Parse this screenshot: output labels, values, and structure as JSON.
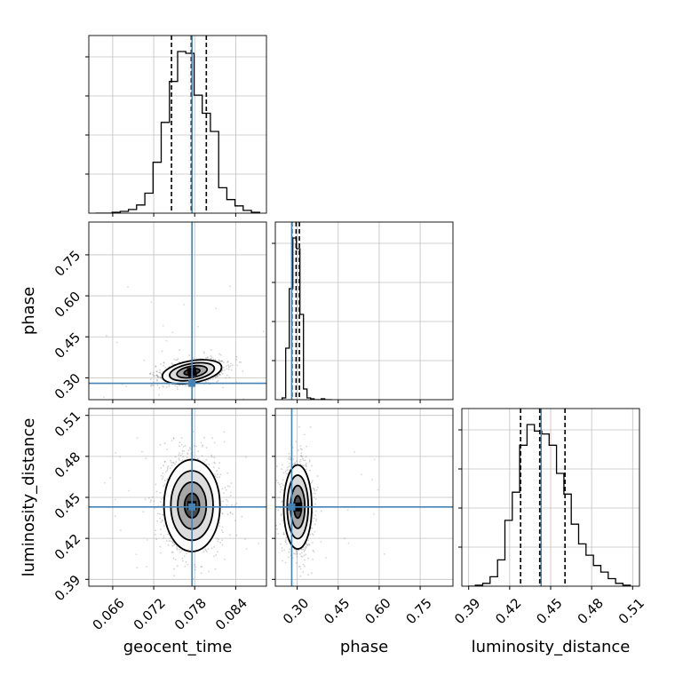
{
  "chart_data": {
    "type": "corner",
    "parameters": [
      "geocent_time",
      "phase",
      "luminosity_distance"
    ],
    "ranges": {
      "geocent_time": [
        0.0625,
        0.0885
      ],
      "phase": [
        0.22,
        0.87
      ],
      "luminosity_distance": [
        0.385,
        0.515
      ]
    },
    "ticks": {
      "geocent_time": [
        "0.066",
        "0.072",
        "0.078",
        "0.084"
      ],
      "phase": [
        "0.30",
        "0.45",
        "0.60",
        "0.75"
      ],
      "luminosity_distance": [
        "0.39",
        "0.42",
        "0.45",
        "0.48",
        "0.51"
      ]
    },
    "truths": {
      "geocent_time": 0.0776,
      "phase": 0.28,
      "luminosity_distance": 0.443
    },
    "quantiles": {
      "geocent_time": [
        0.0746,
        0.0775,
        0.0797
      ],
      "phase": [
        0.281,
        0.296,
        0.308
      ],
      "luminosity_distance": [
        0.428,
        0.442,
        0.4605
      ]
    },
    "histograms": {
      "geocent_time": {
        "bin_edges": [
          0.0635,
          0.0647,
          0.0659,
          0.0671,
          0.0683,
          0.0695,
          0.0707,
          0.0719,
          0.0731,
          0.0743,
          0.0755,
          0.0767,
          0.0779,
          0.0791,
          0.0803,
          0.0815,
          0.0827,
          0.0839,
          0.0851,
          0.0863,
          0.0875
        ],
        "counts": [
          0,
          0,
          1,
          2,
          4,
          9,
          22,
          56,
          100,
          145,
          178,
          176,
          130,
          110,
          90,
          28,
          15,
          8,
          3,
          1
        ]
      },
      "phase": {
        "bin_edges": [
          0.245,
          0.258,
          0.271,
          0.284,
          0.297,
          0.31,
          0.323,
          0.336,
          0.349,
          0.362,
          0.375,
          0.388,
          0.401,
          0.414,
          0.427
        ],
        "counts": [
          2,
          58,
          125,
          182,
          170,
          96,
          12,
          2,
          1,
          0,
          0,
          1,
          0,
          0
        ]
      },
      "luminosity_distance": {
        "bin_edges": [
          0.3895,
          0.3949,
          0.4003,
          0.4057,
          0.4111,
          0.4165,
          0.4219,
          0.4273,
          0.4327,
          0.4381,
          0.4435,
          0.4489,
          0.4543,
          0.4597,
          0.4651,
          0.4705,
          0.4759,
          0.4813,
          0.4867,
          0.4921,
          0.4975,
          0.5029,
          0.5083
        ],
        "counts": [
          0,
          1,
          3,
          10,
          28,
          70,
          100,
          150,
          172,
          165,
          162,
          150,
          120,
          98,
          66,
          45,
          33,
          22,
          15,
          8,
          3,
          1
        ]
      }
    },
    "density_centers": {
      "geocent_time_vs_phase": {
        "x": 0.0776,
        "y": 0.322
      },
      "geocent_time_vs_luminosity_distance": {
        "x": 0.0776,
        "y": 0.444
      },
      "phase_vs_luminosity_distance": {
        "x": 0.302,
        "y": 0.443
      }
    },
    "colors": {
      "truth": "#4682b4",
      "hist": "#000000",
      "grid": "#c0c0c0"
    },
    "grid": true
  }
}
